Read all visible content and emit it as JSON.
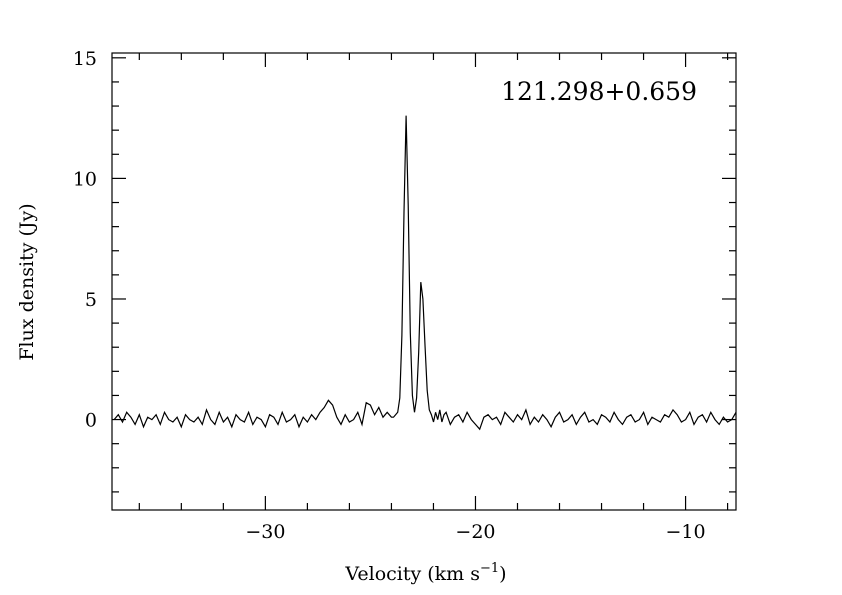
{
  "chart_data": {
    "type": "line",
    "title": "",
    "annotation": "121.298+0.659",
    "xlabel": "Velocity (km s",
    "xlabel_sup": "−1",
    "xlabel_end": ")",
    "ylabel": "Flux density (Jy)",
    "xlim": [
      -37.3,
      -7.6
    ],
    "ylim": [
      -3.75,
      15.2
    ],
    "xticks": [
      -30,
      -20,
      -10
    ],
    "xtick_labels": [
      "−30",
      "−20",
      "−10"
    ],
    "yticks": [
      0,
      5,
      10,
      15
    ],
    "ytick_labels": [
      "0",
      "5",
      "10",
      "15"
    ],
    "x_minor_step": 2,
    "y_minor_step": 1,
    "grid": false,
    "line_color": "#000000",
    "series": [
      {
        "segments": [
          {
            "x_start": -37.2,
            "x_step": 0.2,
            "y": [
              0.0,
              0.2,
              -0.1,
              0.3,
              0.1,
              -0.2,
              0.2,
              -0.3,
              0.1,
              0.0,
              0.2,
              -0.2,
              0.3,
              0.0,
              -0.1,
              0.1,
              -0.3,
              0.2,
              0.0,
              -0.1,
              0.1,
              -0.2,
              0.4,
              0.0,
              -0.2,
              0.3,
              -0.1,
              0.1,
              -0.3,
              0.2,
              0.0,
              -0.1,
              0.3,
              -0.2,
              0.1,
              0.0,
              -0.3,
              0.2,
              0.1,
              -0.2,
              0.3,
              -0.1,
              0.0,
              0.2,
              -0.3,
              0.1,
              -0.1,
              0.2,
              0.0,
              0.3,
              0.5,
              0.8,
              0.6,
              0.1,
              -0.2,
              0.2,
              -0.1,
              0.0,
              0.3,
              -0.2,
              0.7,
              0.6,
              0.2,
              0.5,
              0.1,
              0.3,
              0.1
            ]
          },
          {
            "x_start": -23.9,
            "x_step": 0.1,
            "y": [
              0.1,
              0.2,
              0.3,
              0.9,
              3.5,
              8.6,
              12.6,
              8.9,
              3.6,
              1.0,
              0.3,
              0.9,
              2.8,
              5.7,
              5.0,
              3.0,
              1.2,
              0.4,
              0.2,
              -0.1,
              0.3,
              0.0,
              0.4,
              -0.1,
              0.2
            ]
          },
          {
            "x_start": -21.4,
            "x_step": 0.2,
            "y": [
              0.3,
              -0.2,
              0.1,
              0.2,
              -0.1,
              0.3,
              0.0,
              -0.2,
              -0.4,
              0.1,
              0.2,
              0.0,
              0.1,
              -0.2,
              0.3,
              0.1,
              -0.1,
              0.2,
              0.0,
              0.4,
              -0.2,
              0.1,
              -0.1,
              0.2,
              0.0,
              -0.3,
              0.1,
              0.3,
              -0.1,
              0.0,
              0.2,
              -0.2,
              0.1,
              0.3,
              -0.1,
              0.0,
              -0.2,
              0.2,
              0.1,
              -0.1,
              0.3,
              0.0,
              -0.2,
              0.1,
              0.2,
              -0.1,
              0.0,
              0.3,
              -0.2,
              0.1,
              0.0,
              -0.1,
              0.2,
              0.1,
              0.4,
              0.2,
              -0.1,
              0.0,
              0.3,
              -0.2,
              0.1,
              0.2,
              -0.1,
              0.3,
              0.0,
              -0.2,
              0.1,
              -0.1,
              0.0,
              0.3
            ]
          }
        ]
      }
    ]
  }
}
